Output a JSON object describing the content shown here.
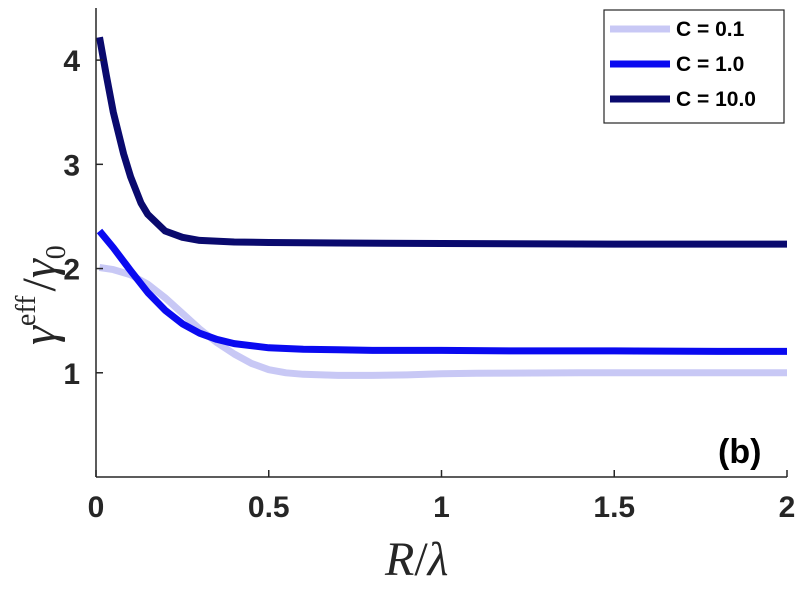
{
  "chart_data": {
    "type": "line",
    "panel_label": "(b)",
    "xlabel": {
      "main": "R",
      "sep": "/",
      "sub": "λ"
    },
    "ylabel": {
      "base": "γ",
      "sup": "eff",
      "sep": "/",
      "denom": "γ",
      "denom_sub": "0"
    },
    "xlim": [
      0,
      2
    ],
    "ylim": [
      0,
      4.5
    ],
    "xticks": [
      0,
      0.5,
      1,
      1.5,
      2
    ],
    "xtick_labels": [
      "0",
      "0.5",
      "1",
      "1.5",
      "2"
    ],
    "yticks": [
      1,
      2,
      3,
      4
    ],
    "ytick_labels": [
      "1",
      "2",
      "3",
      "4"
    ],
    "grid": false,
    "legend_position": "top-right",
    "series": [
      {
        "name": "C = 0.1",
        "color": "#c8c8f5",
        "points": [
          [
            0.01,
            2.01
          ],
          [
            0.05,
            1.99
          ],
          [
            0.1,
            1.94
          ],
          [
            0.15,
            1.85
          ],
          [
            0.2,
            1.72
          ],
          [
            0.25,
            1.57
          ],
          [
            0.3,
            1.42
          ],
          [
            0.35,
            1.29
          ],
          [
            0.4,
            1.18
          ],
          [
            0.45,
            1.09
          ],
          [
            0.5,
            1.03
          ],
          [
            0.55,
            1.0
          ],
          [
            0.6,
            0.985
          ],
          [
            0.7,
            0.975
          ],
          [
            0.8,
            0.975
          ],
          [
            0.9,
            0.98
          ],
          [
            1.0,
            0.99
          ],
          [
            1.1,
            0.995
          ],
          [
            1.2,
            0.997
          ],
          [
            1.4,
            1.0
          ],
          [
            1.6,
            1.0
          ],
          [
            1.8,
            1.0
          ],
          [
            2.0,
            1.0
          ]
        ]
      },
      {
        "name": "C = 1.0",
        "color": "#0a0af0",
        "points": [
          [
            0.01,
            2.36
          ],
          [
            0.05,
            2.2
          ],
          [
            0.1,
            1.98
          ],
          [
            0.15,
            1.77
          ],
          [
            0.2,
            1.6
          ],
          [
            0.25,
            1.47
          ],
          [
            0.3,
            1.38
          ],
          [
            0.35,
            1.32
          ],
          [
            0.4,
            1.28
          ],
          [
            0.5,
            1.24
          ],
          [
            0.6,
            1.225
          ],
          [
            0.7,
            1.22
          ],
          [
            0.8,
            1.215
          ],
          [
            1.0,
            1.215
          ],
          [
            1.2,
            1.21
          ],
          [
            1.5,
            1.21
          ],
          [
            1.8,
            1.205
          ],
          [
            2.0,
            1.205
          ]
        ]
      },
      {
        "name": "C = 10.0",
        "color": "#0a0a6e",
        "points": [
          [
            0.01,
            4.22
          ],
          [
            0.03,
            3.85
          ],
          [
            0.05,
            3.5
          ],
          [
            0.08,
            3.1
          ],
          [
            0.1,
            2.88
          ],
          [
            0.13,
            2.63
          ],
          [
            0.15,
            2.52
          ],
          [
            0.2,
            2.36
          ],
          [
            0.25,
            2.3
          ],
          [
            0.3,
            2.27
          ],
          [
            0.4,
            2.255
          ],
          [
            0.5,
            2.25
          ],
          [
            0.7,
            2.245
          ],
          [
            1.0,
            2.24
          ],
          [
            1.5,
            2.235
          ],
          [
            2.0,
            2.235
          ]
        ]
      }
    ]
  }
}
